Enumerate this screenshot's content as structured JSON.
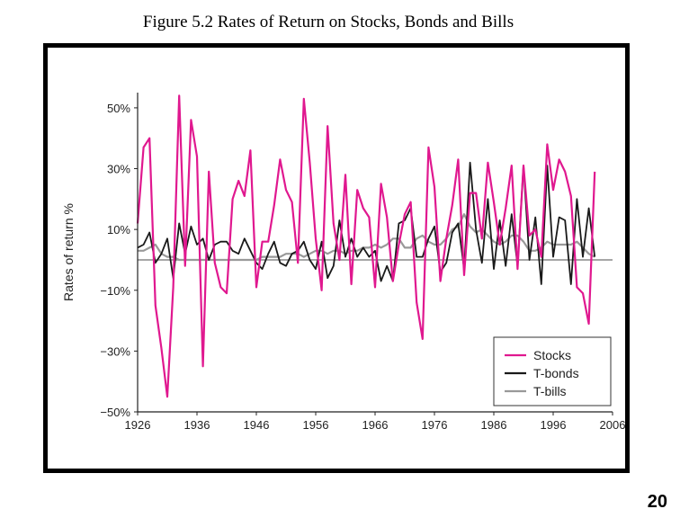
{
  "slide": {
    "title": "Figure 5.2 Rates of Return on Stocks, Bonds and Bills",
    "page_number": "20"
  },
  "colors": {
    "stocks": "#e0188f",
    "tbonds": "#1a1a1a",
    "tbills": "#999999",
    "zero_line": "#888888",
    "axis": "#222222"
  },
  "chart_data": {
    "type": "line",
    "title": "",
    "xlabel": "",
    "ylabel": "Rates of return %",
    "xlim": [
      1926,
      2006
    ],
    "ylim": [
      -50,
      55
    ],
    "x_ticks": [
      1926,
      1936,
      1946,
      1956,
      1966,
      1976,
      1986,
      1996,
      2006
    ],
    "x_tick_labels": [
      "1926",
      "1936",
      "1946",
      "1956",
      "1966",
      "1976",
      "1986",
      "1996",
      "2006"
    ],
    "y_ticks": [
      50,
      30,
      10,
      -10,
      -30,
      -50
    ],
    "y_tick_labels": [
      "50%",
      "30%",
      "10%",
      "−10%",
      "−30%",
      "−50%"
    ],
    "legend_position": "bottom-right",
    "series": [
      {
        "name": "Stocks",
        "x": [
          1926,
          1927,
          1928,
          1929,
          1930,
          1931,
          1932,
          1933,
          1934,
          1935,
          1936,
          1937,
          1938,
          1939,
          1940,
          1941,
          1942,
          1943,
          1944,
          1945,
          1946,
          1947,
          1948,
          1949,
          1950,
          1951,
          1952,
          1953,
          1954,
          1955,
          1956,
          1957,
          1958,
          1959,
          1960,
          1961,
          1962,
          1963,
          1964,
          1965,
          1966,
          1967,
          1968,
          1969,
          1970,
          1971,
          1972,
          1973,
          1974,
          1975,
          1976,
          1977,
          1978,
          1979,
          1980,
          1981,
          1982,
          1983,
          1984,
          1985,
          1986,
          1987,
          1988,
          1989,
          1990,
          1991,
          1992,
          1993,
          1994,
          1995,
          1996,
          1997,
          1998,
          1999,
          2000,
          2001,
          2002,
          2003
        ],
        "values": [
          12,
          37,
          40,
          -15,
          -29,
          -45,
          -9,
          54,
          -2,
          46,
          34,
          -35,
          29,
          -1,
          -9,
          -11,
          20,
          26,
          21,
          36,
          -9,
          6,
          6,
          18,
          33,
          23,
          19,
          -1,
          53,
          32,
          7,
          -10,
          44,
          12,
          0,
          28,
          -8,
          23,
          17,
          14,
          -9,
          25,
          14,
          -7,
          5,
          15,
          19,
          -14,
          -26,
          37,
          24,
          -7,
          7,
          18,
          33,
          -5,
          22,
          22,
          7,
          32,
          19,
          5,
          17,
          31,
          -3,
          31,
          8,
          10,
          1,
          38,
          23,
          33,
          29,
          21,
          -9,
          -11,
          -21,
          29
        ]
      },
      {
        "name": "T-bonds",
        "x": [
          1926,
          1927,
          1928,
          1929,
          1930,
          1931,
          1932,
          1933,
          1934,
          1935,
          1936,
          1937,
          1938,
          1939,
          1940,
          1941,
          1942,
          1943,
          1944,
          1945,
          1946,
          1947,
          1948,
          1949,
          1950,
          1951,
          1952,
          1953,
          1954,
          1955,
          1956,
          1957,
          1958,
          1959,
          1960,
          1961,
          1962,
          1963,
          1964,
          1965,
          1966,
          1967,
          1968,
          1969,
          1970,
          1971,
          1972,
          1973,
          1974,
          1975,
          1976,
          1977,
          1978,
          1979,
          1980,
          1981,
          1982,
          1983,
          1984,
          1985,
          1986,
          1987,
          1988,
          1989,
          1990,
          1991,
          1992,
          1993,
          1994,
          1995,
          1996,
          1997,
          1998,
          1999,
          2000,
          2001,
          2002,
          2003
        ],
        "values": [
          4,
          5,
          9,
          -1,
          2,
          7,
          -6,
          12,
          2,
          11,
          5,
          7,
          0,
          5,
          6,
          6,
          3,
          2,
          7,
          3,
          -1,
          -3,
          2,
          6,
          -1,
          -2,
          2,
          3,
          6,
          0,
          -3,
          6,
          -6,
          -2,
          13,
          1,
          7,
          1,
          4,
          1,
          3,
          -7,
          -2,
          -7,
          12,
          13,
          17,
          1,
          1,
          7,
          11,
          -4,
          -1,
          9,
          12,
          -3,
          32,
          10,
          -1,
          20,
          -3,
          13,
          -2,
          15,
          -2,
          31,
          0,
          14,
          -8,
          31,
          1,
          14,
          13,
          -8,
          20,
          1,
          17,
          1
        ]
      },
      {
        "name": "T-bills",
        "x": [
          1926,
          1927,
          1928,
          1929,
          1930,
          1931,
          1932,
          1933,
          1934,
          1935,
          1936,
          1937,
          1938,
          1939,
          1940,
          1941,
          1942,
          1943,
          1944,
          1945,
          1946,
          1947,
          1948,
          1949,
          1950,
          1951,
          1952,
          1953,
          1954,
          1955,
          1956,
          1957,
          1958,
          1959,
          1960,
          1961,
          1962,
          1963,
          1964,
          1965,
          1966,
          1967,
          1968,
          1969,
          1970,
          1971,
          1972,
          1973,
          1974,
          1975,
          1976,
          1977,
          1978,
          1979,
          1980,
          1981,
          1982,
          1983,
          1984,
          1985,
          1986,
          1987,
          1988,
          1989,
          1990,
          1991,
          1992,
          1993,
          1994,
          1995,
          1996,
          1997,
          1998,
          1999,
          2000,
          2001,
          2002,
          2003
        ],
        "values": [
          3,
          3,
          4,
          5,
          2,
          1,
          1,
          0,
          0,
          0,
          0,
          0,
          0,
          0,
          0,
          0,
          0,
          0,
          0,
          0,
          0,
          1,
          1,
          1,
          1,
          2,
          2,
          2,
          1,
          2,
          3,
          3,
          2,
          3,
          3,
          2,
          3,
          3,
          4,
          4,
          5,
          4,
          5,
          7,
          7,
          4,
          4,
          7,
          8,
          6,
          5,
          5,
          7,
          10,
          11,
          15,
          11,
          9,
          10,
          8,
          6,
          5,
          6,
          8,
          8,
          6,
          3,
          3,
          4,
          6,
          5,
          5,
          5,
          5,
          6,
          4,
          2,
          1
        ]
      }
    ]
  }
}
